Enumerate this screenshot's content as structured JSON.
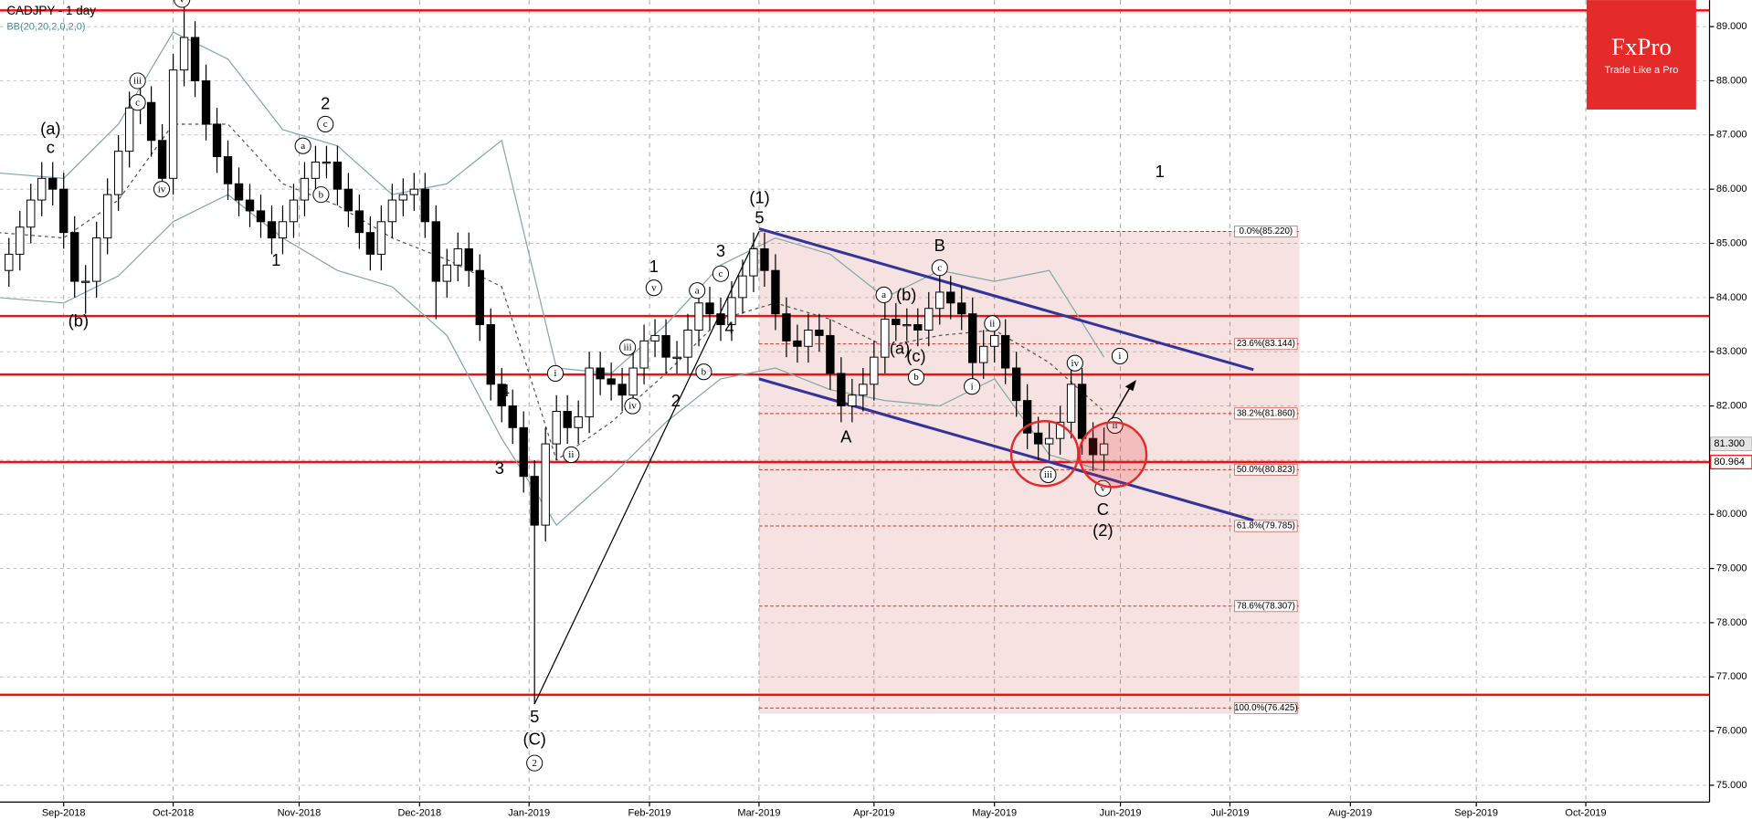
{
  "chart_data": {
    "type": "candlestick",
    "title": "CADJPY - 1 day",
    "subtitle": "BB(20,20,2,0,2,0)",
    "branding": {
      "logo": "FxPro",
      "tagline": "Trade Like a Pro"
    },
    "xlim": [
      -11.63,
      300.6
    ],
    "ylim": [
      74.69,
      89.49
    ],
    "grid": true,
    "xticks": [
      {
        "value": 0,
        "label": "Sep-2018"
      },
      {
        "value": 20,
        "label": "Oct-2018"
      },
      {
        "value": 43,
        "label": "Nov-2018"
      },
      {
        "value": 65,
        "label": "Dec-2018"
      },
      {
        "value": 85,
        "label": "Jan-2019"
      },
      {
        "value": 107,
        "label": "Feb-2019"
      },
      {
        "value": 127,
        "label": "Mar-2019"
      },
      {
        "value": 148,
        "label": "Apr-2019"
      },
      {
        "value": 170,
        "label": "May-2019"
      },
      {
        "value": 193,
        "label": "Jun-2019"
      },
      {
        "value": 213,
        "label": "Jul-2019"
      },
      {
        "value": 235,
        "label": "Aug-2019"
      },
      {
        "value": 258,
        "label": "Sep-2019"
      },
      {
        "value": 278,
        "label": "Oct-2019"
      }
    ],
    "yticks": [
      {
        "value": 75,
        "label": "75.000"
      },
      {
        "value": 76,
        "label": "76.000"
      },
      {
        "value": 77,
        "label": "77.000"
      },
      {
        "value": 78,
        "label": "78.000"
      },
      {
        "value": 79,
        "label": "79.000"
      },
      {
        "value": 80,
        "label": "80.000"
      },
      {
        "value": 81,
        "label": "81.000"
      },
      {
        "value": 82,
        "label": "82.000"
      },
      {
        "value": 83,
        "label": "83.000"
      },
      {
        "value": 84,
        "label": "84.000"
      },
      {
        "value": 85,
        "label": "85.000"
      },
      {
        "value": 86,
        "label": "86.000"
      },
      {
        "value": 87,
        "label": "87.000"
      },
      {
        "value": 88,
        "label": "88.000"
      },
      {
        "value": 89,
        "label": "89.000"
      }
    ],
    "up_color": "#ffffff",
    "down_color": "#000000",
    "x": [
      -10,
      -8,
      -6,
      -4,
      -2,
      0,
      2,
      4,
      6,
      8,
      10,
      12,
      14,
      16,
      18,
      20,
      22,
      24,
      26,
      28,
      30,
      32,
      34,
      36,
      38,
      40,
      42,
      44,
      46,
      48,
      50,
      52,
      54,
      56,
      58,
      60,
      62,
      64,
      66,
      68,
      70,
      72,
      74,
      76,
      78,
      80,
      82,
      84,
      86,
      88,
      90,
      92,
      94,
      96,
      98,
      100,
      102,
      104,
      106,
      108,
      110,
      112,
      114,
      116,
      118,
      120,
      122,
      124,
      126,
      128,
      130,
      132,
      134,
      136,
      138,
      140,
      142,
      144,
      146,
      148,
      150,
      152,
      154,
      156,
      158,
      160,
      162,
      164,
      166,
      168,
      170,
      172,
      174,
      176,
      178,
      180,
      182,
      184,
      186,
      188,
      190
    ],
    "candles": [
      [
        84.5,
        85.1,
        84.2,
        84.8
      ],
      [
        84.8,
        85.6,
        84.5,
        85.3
      ],
      [
        85.3,
        86.1,
        85.0,
        85.8
      ],
      [
        85.8,
        86.5,
        85.5,
        86.2
      ],
      [
        86.2,
        86.5,
        85.7,
        86.0
      ],
      [
        86.0,
        86.3,
        84.9,
        85.2
      ],
      [
        85.2,
        85.5,
        84.0,
        84.3
      ],
      [
        84.3,
        84.6,
        83.7,
        84.3
      ],
      [
        84.3,
        85.4,
        84.0,
        85.1
      ],
      [
        85.1,
        86.2,
        84.8,
        85.9
      ],
      [
        85.9,
        87.0,
        85.6,
        86.7
      ],
      [
        86.7,
        87.8,
        86.4,
        87.5
      ],
      [
        87.5,
        87.9,
        87.2,
        87.6
      ],
      [
        87.6,
        87.9,
        86.6,
        86.9
      ],
      [
        86.9,
        87.2,
        85.9,
        86.2
      ],
      [
        86.2,
        88.5,
        85.9,
        88.2
      ],
      [
        88.2,
        89.4,
        87.9,
        88.8
      ],
      [
        88.8,
        89.1,
        87.7,
        88.0
      ],
      [
        88.0,
        88.3,
        86.9,
        87.2
      ],
      [
        87.2,
        87.5,
        86.3,
        86.6
      ],
      [
        86.6,
        86.9,
        85.8,
        86.1
      ],
      [
        86.1,
        86.4,
        85.5,
        85.8
      ],
      [
        85.8,
        86.1,
        85.3,
        85.6
      ],
      [
        85.6,
        85.9,
        85.1,
        85.4
      ],
      [
        85.4,
        85.7,
        84.8,
        85.1
      ],
      [
        85.1,
        85.7,
        84.8,
        85.4
      ],
      [
        85.4,
        86.1,
        85.1,
        85.8
      ],
      [
        85.8,
        86.5,
        85.5,
        86.2
      ],
      [
        86.2,
        86.8,
        85.9,
        86.5
      ],
      [
        86.5,
        86.8,
        86.2,
        86.5
      ],
      [
        86.5,
        86.8,
        85.7,
        86.0
      ],
      [
        86.0,
        86.3,
        85.3,
        85.6
      ],
      [
        85.6,
        85.9,
        84.9,
        85.2
      ],
      [
        85.2,
        85.5,
        84.5,
        84.8
      ],
      [
        84.8,
        85.7,
        84.5,
        85.4
      ],
      [
        85.4,
        86.1,
        85.1,
        85.8
      ],
      [
        85.8,
        86.2,
        85.5,
        85.9
      ],
      [
        85.9,
        86.3,
        85.6,
        86.0
      ],
      [
        86.0,
        86.3,
        85.1,
        85.4
      ],
      [
        85.4,
        85.7,
        83.6,
        84.3
      ],
      [
        84.3,
        84.9,
        84.0,
        84.6
      ],
      [
        84.6,
        85.2,
        84.3,
        84.9
      ],
      [
        84.9,
        85.2,
        84.2,
        84.5
      ],
      [
        84.5,
        84.8,
        83.2,
        83.5
      ],
      [
        83.5,
        83.8,
        82.1,
        82.4
      ],
      [
        82.4,
        82.7,
        81.7,
        82.0
      ],
      [
        82.0,
        82.3,
        81.3,
        81.6
      ],
      [
        81.6,
        81.9,
        80.4,
        80.7
      ],
      [
        80.7,
        81.0,
        76.5,
        79.8
      ],
      [
        79.8,
        81.6,
        79.5,
        81.3
      ],
      [
        81.3,
        82.2,
        81.0,
        81.9
      ],
      [
        81.9,
        82.2,
        81.3,
        81.6
      ],
      [
        81.6,
        82.1,
        81.3,
        81.8
      ],
      [
        81.8,
        83.0,
        81.5,
        82.7
      ],
      [
        82.7,
        83.0,
        82.2,
        82.5
      ],
      [
        82.5,
        82.8,
        82.1,
        82.4
      ],
      [
        82.4,
        82.7,
        81.9,
        82.2
      ],
      [
        82.2,
        83.0,
        81.9,
        82.7
      ],
      [
        82.7,
        83.5,
        82.4,
        83.2
      ],
      [
        83.2,
        83.6,
        82.9,
        83.3
      ],
      [
        83.3,
        83.6,
        82.6,
        82.9
      ],
      [
        82.9,
        83.2,
        82.6,
        82.9
      ],
      [
        82.9,
        83.7,
        82.6,
        83.4
      ],
      [
        83.4,
        84.2,
        83.1,
        83.9
      ],
      [
        83.9,
        84.2,
        83.4,
        83.7
      ],
      [
        83.7,
        84.0,
        83.2,
        83.5
      ],
      [
        83.5,
        84.3,
        83.2,
        84.0
      ],
      [
        84.0,
        84.7,
        83.7,
        84.4
      ],
      [
        84.4,
        85.2,
        84.1,
        84.9
      ],
      [
        84.9,
        85.2,
        84.2,
        84.5
      ],
      [
        84.5,
        84.8,
        83.4,
        83.7
      ],
      [
        83.7,
        84.0,
        82.9,
        83.2
      ],
      [
        83.2,
        83.5,
        82.8,
        83.1
      ],
      [
        83.1,
        83.7,
        82.8,
        83.4
      ],
      [
        83.4,
        83.7,
        83.0,
        83.3
      ],
      [
        83.3,
        83.6,
        82.3,
        82.6
      ],
      [
        82.6,
        82.9,
        81.7,
        82.0
      ],
      [
        82.0,
        82.5,
        81.7,
        82.2
      ],
      [
        82.2,
        82.7,
        81.9,
        82.4
      ],
      [
        82.4,
        83.2,
        82.1,
        82.9
      ],
      [
        82.9,
        83.9,
        82.6,
        83.6
      ],
      [
        83.6,
        83.9,
        83.2,
        83.5
      ],
      [
        83.5,
        83.8,
        83.2,
        83.5
      ],
      [
        83.5,
        83.8,
        83.1,
        83.4
      ],
      [
        83.4,
        84.1,
        83.1,
        83.8
      ],
      [
        83.8,
        84.4,
        83.5,
        84.1
      ],
      [
        84.1,
        84.4,
        83.6,
        83.9
      ],
      [
        83.9,
        84.2,
        83.4,
        83.7
      ],
      [
        83.7,
        84.0,
        82.5,
        82.8
      ],
      [
        82.8,
        83.4,
        82.5,
        83.1
      ],
      [
        83.1,
        83.6,
        82.8,
        83.3
      ],
      [
        83.3,
        83.6,
        82.4,
        82.7
      ],
      [
        82.7,
        83.0,
        81.8,
        82.1
      ],
      [
        82.1,
        82.4,
        81.2,
        81.5
      ],
      [
        81.5,
        81.8,
        81.0,
        81.3
      ],
      [
        81.3,
        81.7,
        81.0,
        81.4
      ],
      [
        81.4,
        82.0,
        81.1,
        81.7
      ],
      [
        81.7,
        82.7,
        81.4,
        82.4
      ],
      [
        82.4,
        82.7,
        81.1,
        81.4
      ],
      [
        81.4,
        81.7,
        80.8,
        81.1
      ],
      [
        81.1,
        81.6,
        80.8,
        81.3
      ]
    ],
    "bollinger": {
      "color": "#7fa8a8",
      "x": [
        -12,
        0,
        10,
        20,
        30,
        40,
        50,
        60,
        70,
        80,
        90,
        100,
        110,
        120,
        130,
        140,
        150,
        160,
        170,
        180,
        190
      ],
      "upper": [
        86.3,
        86.2,
        87.2,
        88.9,
        88.4,
        87.1,
        86.8,
        85.9,
        86.1,
        86.9,
        82.7,
        82.6,
        83.5,
        84.6,
        85.1,
        84.8,
        84.0,
        84.5,
        84.3,
        84.5,
        82.9
      ],
      "middle": [
        85.2,
        85.1,
        85.8,
        87.2,
        87.2,
        86.1,
        85.7,
        85.1,
        84.7,
        84.2,
        81.0,
        81.7,
        82.6,
        83.6,
        83.9,
        83.6,
        83.1,
        83.3,
        83.4,
        82.8,
        81.9
      ],
      "lower": [
        84.0,
        83.9,
        84.4,
        85.4,
        85.9,
        85.1,
        84.5,
        84.2,
        83.3,
        81.4,
        79.8,
        80.7,
        81.7,
        82.5,
        82.7,
        82.3,
        82.1,
        82.0,
        82.5,
        81.1,
        80.8
      ]
    },
    "levels": [
      89.3,
      83.66,
      82.58,
      {
        "value": 80.964,
        "label": "80.964"
      },
      76.67
    ],
    "level_color": "#ee1111",
    "current_price": {
      "value": 81.3,
      "label": "81.300"
    },
    "fibonacci": {
      "x": [
        127,
        225.7
      ],
      "color": "#c0392b",
      "levels": [
        {
          "value": 85.22,
          "label": "0.0%(85.220)"
        },
        {
          "value": 83.144,
          "label": "23.6%(83.144)"
        },
        {
          "value": 81.86,
          "label": "38.2%(81.860)"
        },
        {
          "value": 80.823,
          "label": "50.0%(80.823)"
        },
        {
          "value": 79.785,
          "label": "61.8%(79.785)"
        },
        {
          "value": 78.307,
          "label": "78.6%(78.307)"
        },
        {
          "value": 76.425,
          "label": "100.0%(76.425)"
        }
      ]
    },
    "channels": [
      {
        "x": [
          127,
          217.3
        ],
        "y": [
          85.27,
          82.67
        ]
      },
      {
        "x": [
          127,
          217.3
        ],
        "y": [
          82.5,
          79.89
        ]
      }
    ],
    "channel_color": "#333399",
    "wave_line": {
      "x": [
        86,
        127
      ],
      "y": [
        76.5,
        85.22
      ]
    },
    "annotations": [
      {
        "text": "(a)",
        "x": -2.4,
        "y": 87.1,
        "circled": false
      },
      {
        "text": "c",
        "x": -2.4,
        "y": 86.75,
        "circled": false
      },
      {
        "text": "(b)",
        "x": 2.7,
        "y": 83.55,
        "circled": false
      },
      {
        "text": "iii",
        "x": 13.5,
        "y": 88.0,
        "circled": true
      },
      {
        "text": "c",
        "x": 13.5,
        "y": 87.6,
        "circled": true
      },
      {
        "text": "iv",
        "x": 17.9,
        "y": 86.0,
        "circled": true
      },
      {
        "text": "v",
        "x": 21.6,
        "y": 89.5,
        "circled": true
      },
      {
        "text": "1",
        "x": 38.8,
        "y": 84.67,
        "circled": false
      },
      {
        "text": "2",
        "x": 47.8,
        "y": 87.56,
        "circled": false
      },
      {
        "text": "a",
        "x": 43.7,
        "y": 86.8,
        "circled": true
      },
      {
        "text": "c",
        "x": 47.8,
        "y": 87.2,
        "circled": true
      },
      {
        "text": "b",
        "x": 47.0,
        "y": 85.9,
        "circled": true
      },
      {
        "text": "4",
        "x": 80.6,
        "y": 82.26,
        "circled": false
      },
      {
        "text": "3",
        "x": 79.6,
        "y": 80.83,
        "circled": false
      },
      {
        "text": "i",
        "x": 89.8,
        "y": 82.6,
        "circled": true
      },
      {
        "text": "ii",
        "x": 92.7,
        "y": 81.1,
        "circled": true
      },
      {
        "text": "5",
        "x": 86,
        "y": 76.24,
        "circled": false
      },
      {
        "text": "(C)",
        "x": 86,
        "y": 75.83,
        "circled": false
      },
      {
        "text": "2",
        "x": 86,
        "y": 75.41,
        "circled": true
      },
      {
        "text": "iii",
        "x": 103,
        "y": 83.08,
        "circled": true
      },
      {
        "text": "iv",
        "x": 103.9,
        "y": 82.0,
        "circled": true
      },
      {
        "text": "v",
        "x": 107.8,
        "y": 84.18,
        "circled": true
      },
      {
        "text": "1",
        "x": 107.8,
        "y": 84.55,
        "circled": false
      },
      {
        "text": "2",
        "x": 111.8,
        "y": 82.07,
        "circled": false
      },
      {
        "text": "a",
        "x": 115.7,
        "y": 84.13,
        "circled": true
      },
      {
        "text": "b",
        "x": 116.9,
        "y": 82.63,
        "circled": true
      },
      {
        "text": "c",
        "x": 120,
        "y": 84.44,
        "circled": true
      },
      {
        "text": "3",
        "x": 120,
        "y": 84.84,
        "circled": false
      },
      {
        "text": "4",
        "x": 121.6,
        "y": 83.41,
        "circled": false
      },
      {
        "text": "(1)",
        "x": 127.1,
        "y": 85.82,
        "circled": false
      },
      {
        "text": "5",
        "x": 127.1,
        "y": 85.45,
        "circled": false
      },
      {
        "text": "A",
        "x": 142.9,
        "y": 81.41,
        "circled": false
      },
      {
        "text": "B",
        "x": 160,
        "y": 84.94,
        "circled": false
      },
      {
        "text": "c",
        "x": 160,
        "y": 84.55,
        "circled": true
      },
      {
        "text": "a",
        "x": 149.8,
        "y": 84.05,
        "circled": true
      },
      {
        "text": "(b)",
        "x": 153.9,
        "y": 84.03,
        "circled": false
      },
      {
        "text": "(a)",
        "x": 152.7,
        "y": 83.04,
        "circled": false
      },
      {
        "text": "(c)",
        "x": 155.7,
        "y": 82.9,
        "circled": false
      },
      {
        "text": "b",
        "x": 155.7,
        "y": 82.53,
        "circled": true
      },
      {
        "text": "ii",
        "x": 169.6,
        "y": 83.52,
        "circled": true
      },
      {
        "text": "i",
        "x": 165.9,
        "y": 82.36,
        "circled": true
      },
      {
        "text": "iv",
        "x": 184.7,
        "y": 82.79,
        "circled": true
      },
      {
        "text": "i",
        "x": 192.9,
        "y": 82.92,
        "circled": true
      },
      {
        "text": "ii",
        "x": 192,
        "y": 81.64,
        "circled": true
      },
      {
        "text": "iii",
        "x": 179.8,
        "y": 80.73,
        "circled": true
      },
      {
        "text": "v",
        "x": 189.8,
        "y": 80.48,
        "circled": true
      },
      {
        "text": "C",
        "x": 189.8,
        "y": 80.07,
        "circled": false
      },
      {
        "text": "(2)",
        "x": 189.8,
        "y": 79.68,
        "circled": false
      },
      {
        "text": "1",
        "x": 200.2,
        "y": 86.3,
        "circled": false
      }
    ]
  }
}
